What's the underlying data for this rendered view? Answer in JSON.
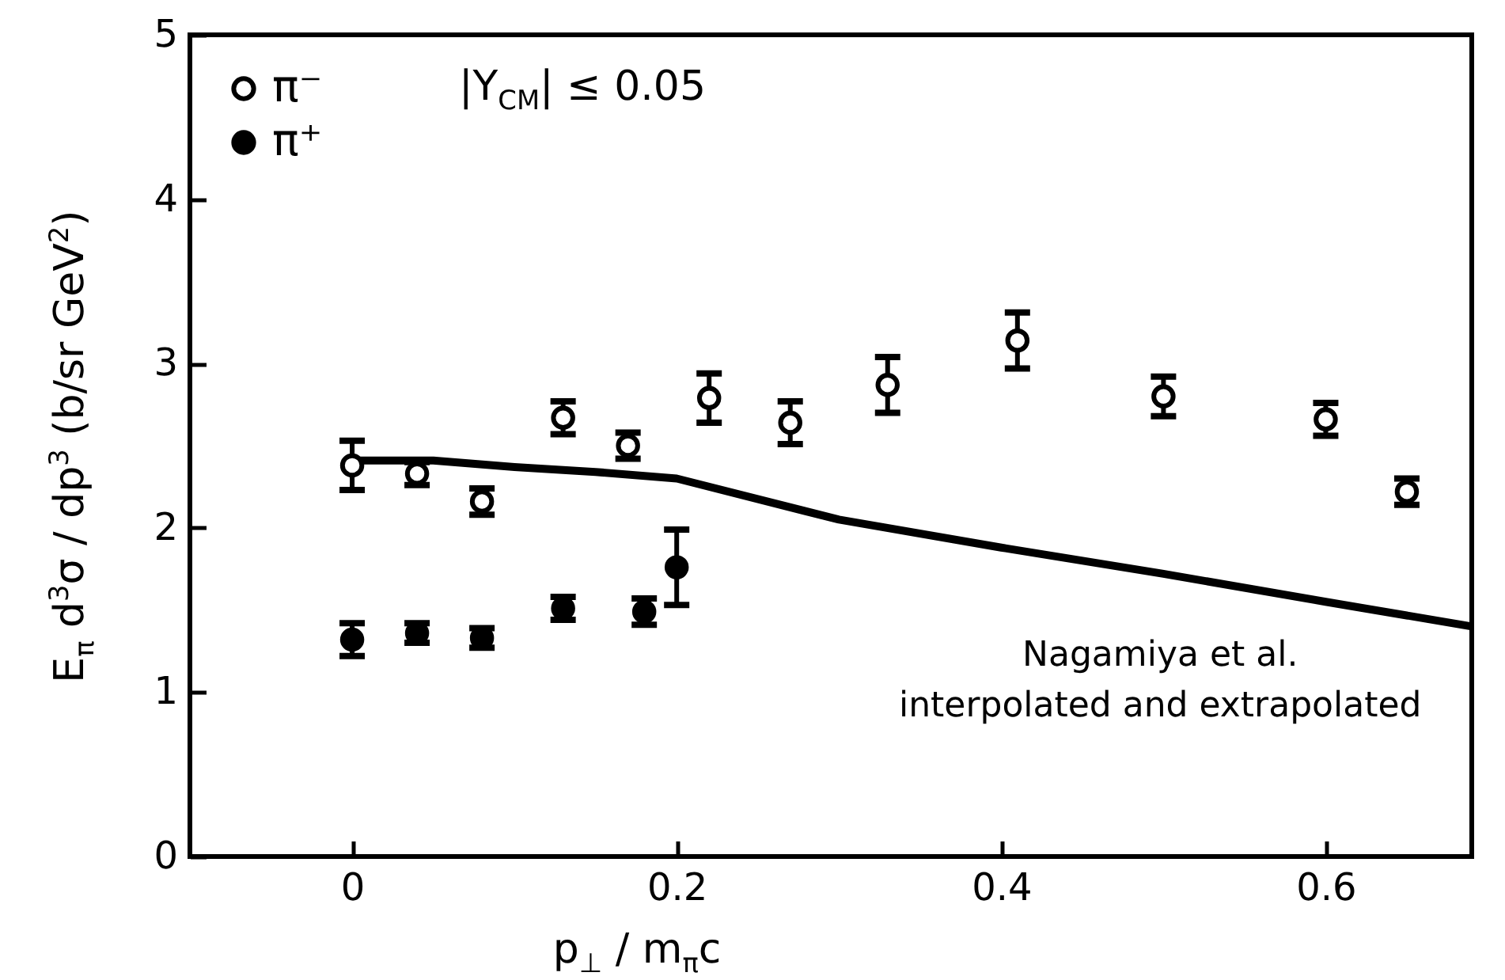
{
  "chart_data": {
    "type": "scatter",
    "xlabel": "p$_{⊥}$ / m$_{π}$c",
    "ylabel": "E$_{π}$ d$^{3}$σ / dp$^{3}$ (b/sr GeV$^{2}$)",
    "xlim": [
      -0.1,
      0.69
    ],
    "ylim": [
      0,
      5
    ],
    "xticks": [
      0,
      0.2,
      0.4,
      0.6
    ],
    "yticks": [
      0,
      1,
      2,
      3,
      4,
      5
    ],
    "grid": false,
    "legend": "top left",
    "annotations": [
      "|Y$_{CM}$| ≤ 0.05",
      {
        "text": "Nagamiya et al.\ninterpolated and extrapolated",
        "x": 0.615,
        "y": 1.5
      }
    ],
    "series": [
      {
        "name": "π⁻",
        "color": "#000000",
        "marker": "open-circle",
        "x": [
          0,
          0.04,
          0.08,
          0.13,
          0.17,
          0.22,
          0.27,
          0.33,
          0.41,
          0.5,
          0.6,
          0.65
        ],
        "values": [
          2.38,
          2.33,
          2.16,
          2.67,
          2.5,
          2.79,
          2.64,
          2.87,
          3.14,
          2.8,
          2.66,
          2.22
        ],
        "errors": [
          0.15,
          0.07,
          0.08,
          0.1,
          0.08,
          0.15,
          0.13,
          0.17,
          0.17,
          0.12,
          0.1,
          0.08
        ]
      },
      {
        "name": "π⁺",
        "color": "#000000",
        "marker": "circle",
        "x": [
          0,
          0.04,
          0.08,
          0.13,
          0.18,
          0.2
        ],
        "values": [
          1.32,
          1.36,
          1.33,
          1.51,
          1.49,
          1.76
        ],
        "errors": [
          0.1,
          0.06,
          0.06,
          0.07,
          0.08,
          0.23
        ]
      },
      {
        "type": "line",
        "color": "#000000",
        "marker": "none",
        "x": [
          0,
          0.05,
          0.1,
          0.15,
          0.2,
          0.3,
          0.4,
          0.5,
          0.6,
          0.69
        ],
        "values": [
          2.41,
          2.41,
          2.37,
          2.34,
          2.3,
          2.05,
          1.88,
          1.72,
          1.55,
          1.4
        ]
      }
    ]
  }
}
